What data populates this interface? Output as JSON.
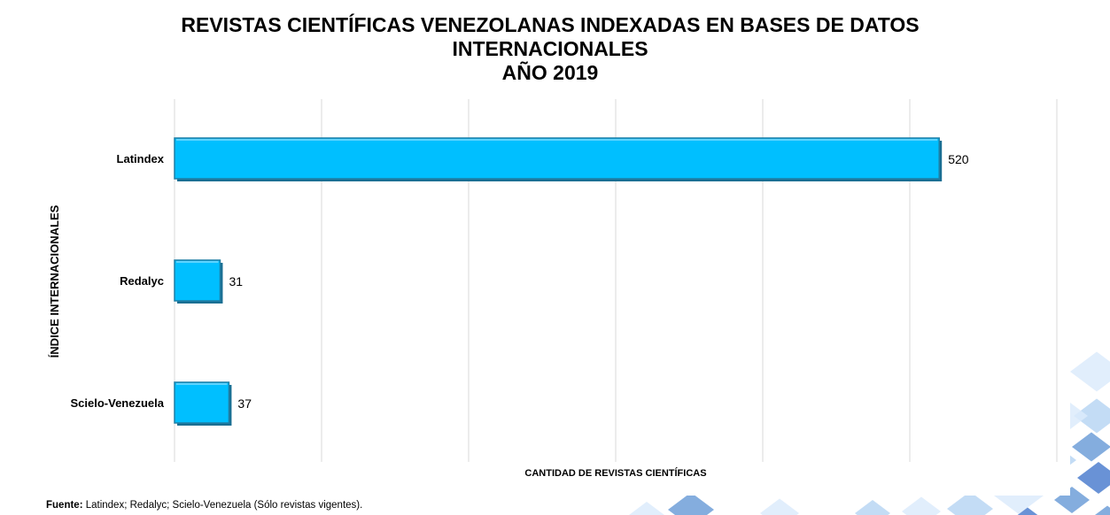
{
  "chart_data": {
    "type": "bar",
    "orientation": "horizontal",
    "title_lines": [
      "REVISTAS CIENTÍFICAS VENEZOLANAS INDEXADAS EN BASES DE DATOS",
      "INTERNACIONALES",
      "AÑO 2019"
    ],
    "categories": [
      "Latindex",
      "Redalyc",
      "Scielo-Venezuela"
    ],
    "values": [
      520,
      31,
      37
    ],
    "value_labels": [
      "520",
      "31",
      "37"
    ],
    "xlabel": "CANTIDAD DE REVISTAS CIENTÍFICAS",
    "ylabel": "ÍNDICE INTERNACIONALES",
    "xlim": [
      0,
      600
    ],
    "grid": true,
    "bar_color": "#00bfff",
    "bar_edge_color": "#1d7fa6"
  },
  "source": {
    "label": "Fuente:",
    "text": " Latindex; Redalyc; Scielo-Venezuela (Sólo revistas vigentes)."
  },
  "decoration": {
    "colors": [
      "#dcebfb",
      "#b9d6f3",
      "#6f9fd8",
      "#4f7fcf"
    ]
  }
}
